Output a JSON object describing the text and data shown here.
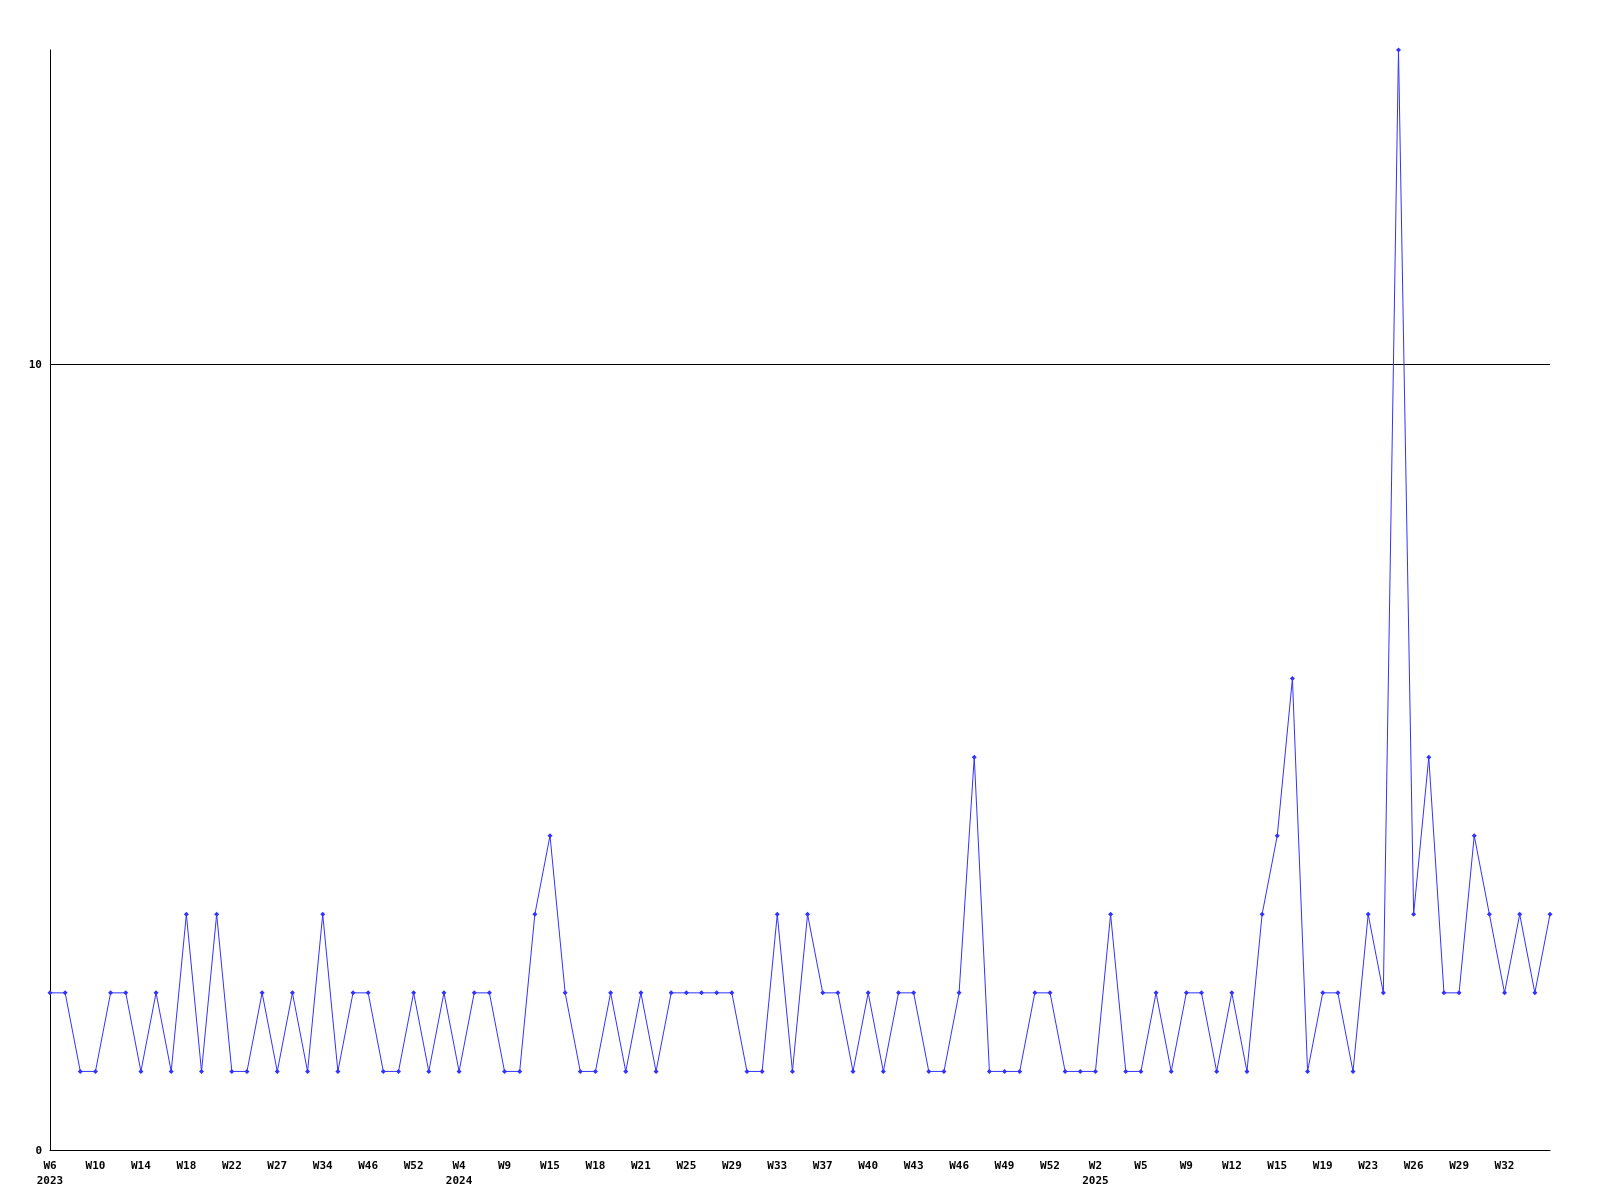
{
  "chart_data": {
    "type": "line",
    "categories": [
      "W6\n2023",
      null,
      null,
      "W10",
      null,
      null,
      "W14",
      null,
      null,
      "W18",
      null,
      null,
      "W22",
      null,
      null,
      "W27",
      null,
      null,
      "W34",
      null,
      null,
      "W46",
      null,
      null,
      "W52",
      null,
      null,
      "W4\n2024",
      null,
      null,
      "W9",
      null,
      null,
      "W15",
      null,
      null,
      "W18",
      null,
      null,
      "W21",
      null,
      null,
      "W25",
      null,
      null,
      "W29",
      null,
      null,
      "W33",
      null,
      null,
      "W37",
      null,
      null,
      "W40",
      null,
      null,
      "W43",
      null,
      null,
      "W46",
      null,
      null,
      "W49",
      null,
      null,
      "W52",
      null,
      null,
      "W2\n2025",
      null,
      null,
      "W5",
      null,
      null,
      "W9",
      null,
      null,
      "W12",
      null,
      null,
      "W15",
      null,
      null,
      "W19",
      null,
      null,
      "W23",
      null,
      null,
      "W26",
      null,
      null,
      "W29",
      null,
      null,
      "W32",
      null,
      null,
      null
    ],
    "series": [
      {
        "color": "#3333ff",
        "values": [
          2,
          2,
          1,
          1,
          2,
          2,
          1,
          2,
          1,
          3,
          1,
          3,
          1,
          1,
          2,
          1,
          2,
          1,
          3,
          1,
          2,
          2,
          1,
          1,
          2,
          1,
          2,
          1,
          2,
          2,
          1,
          1,
          3,
          4,
          2,
          1,
          1,
          2,
          1,
          2,
          1,
          2,
          2,
          2,
          2,
          2,
          1,
          1,
          3,
          1,
          3,
          2,
          2,
          1,
          2,
          1,
          2,
          2,
          1,
          1,
          2,
          5,
          1,
          1,
          1,
          2,
          2,
          1,
          1,
          1,
          3,
          1,
          1,
          2,
          1,
          2,
          2,
          1,
          2,
          1,
          3,
          4,
          6,
          1,
          2,
          2,
          1,
          3,
          2,
          14,
          3,
          5,
          2,
          2,
          4,
          3,
          2,
          3,
          2,
          3
        ]
      }
    ],
    "ylim": [
      0,
      14
    ],
    "yticks": [
      0,
      10
    ],
    "grid": "y",
    "marker": "diamond",
    "line_style": "solid"
  }
}
